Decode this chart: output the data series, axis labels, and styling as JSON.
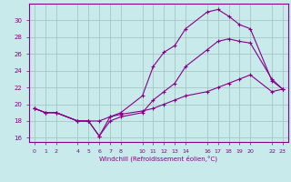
{
  "title": "",
  "xlabel": "Windchill (Refroidissement éolien,°C)",
  "bg_color": "#c8eaea",
  "grid_color": "#a0c0c0",
  "line_color": "#880088",
  "xlim": [
    -0.5,
    23.5
  ],
  "ylim": [
    15.5,
    32.0
  ],
  "yticks": [
    16,
    18,
    20,
    22,
    24,
    26,
    28,
    30
  ],
  "xtick_positions": [
    0,
    1,
    2,
    4,
    5,
    6,
    7,
    8,
    10,
    11,
    12,
    13,
    14,
    16,
    17,
    18,
    19,
    20,
    22,
    23
  ],
  "xtick_labels": [
    "0",
    "1",
    "2",
    "4",
    "5",
    "6",
    "7",
    "8",
    "10",
    "11",
    "12",
    "13",
    "14",
    "16",
    "17",
    "18",
    "19",
    "20",
    "22",
    "23"
  ],
  "line1_x": [
    0,
    1,
    2,
    4,
    5,
    6,
    7,
    8,
    10,
    11,
    12,
    13,
    14,
    16,
    17,
    18,
    19,
    20,
    22,
    23
  ],
  "line1_y": [
    19.5,
    19.0,
    19.0,
    18.0,
    18.0,
    16.2,
    18.5,
    19.0,
    21.0,
    24.5,
    26.2,
    27.0,
    29.0,
    31.0,
    31.3,
    30.5,
    29.5,
    29.0,
    22.8,
    21.8
  ],
  "line2_x": [
    0,
    1,
    2,
    4,
    5,
    6,
    7,
    8,
    10,
    11,
    12,
    13,
    14,
    16,
    17,
    18,
    19,
    20,
    22,
    23
  ],
  "line2_y": [
    19.5,
    19.0,
    19.0,
    18.0,
    18.0,
    16.2,
    18.0,
    18.5,
    19.0,
    20.5,
    21.5,
    22.5,
    24.5,
    26.5,
    27.5,
    27.8,
    27.5,
    27.3,
    23.0,
    21.8
  ],
  "line3_x": [
    0,
    1,
    2,
    4,
    5,
    6,
    7,
    8,
    10,
    11,
    12,
    13,
    14,
    16,
    17,
    18,
    19,
    20,
    22,
    23
  ],
  "line3_y": [
    19.5,
    19.0,
    19.0,
    18.0,
    18.0,
    18.0,
    18.5,
    18.8,
    19.2,
    19.5,
    20.0,
    20.5,
    21.0,
    21.5,
    22.0,
    22.5,
    23.0,
    23.5,
    21.5,
    21.8
  ]
}
